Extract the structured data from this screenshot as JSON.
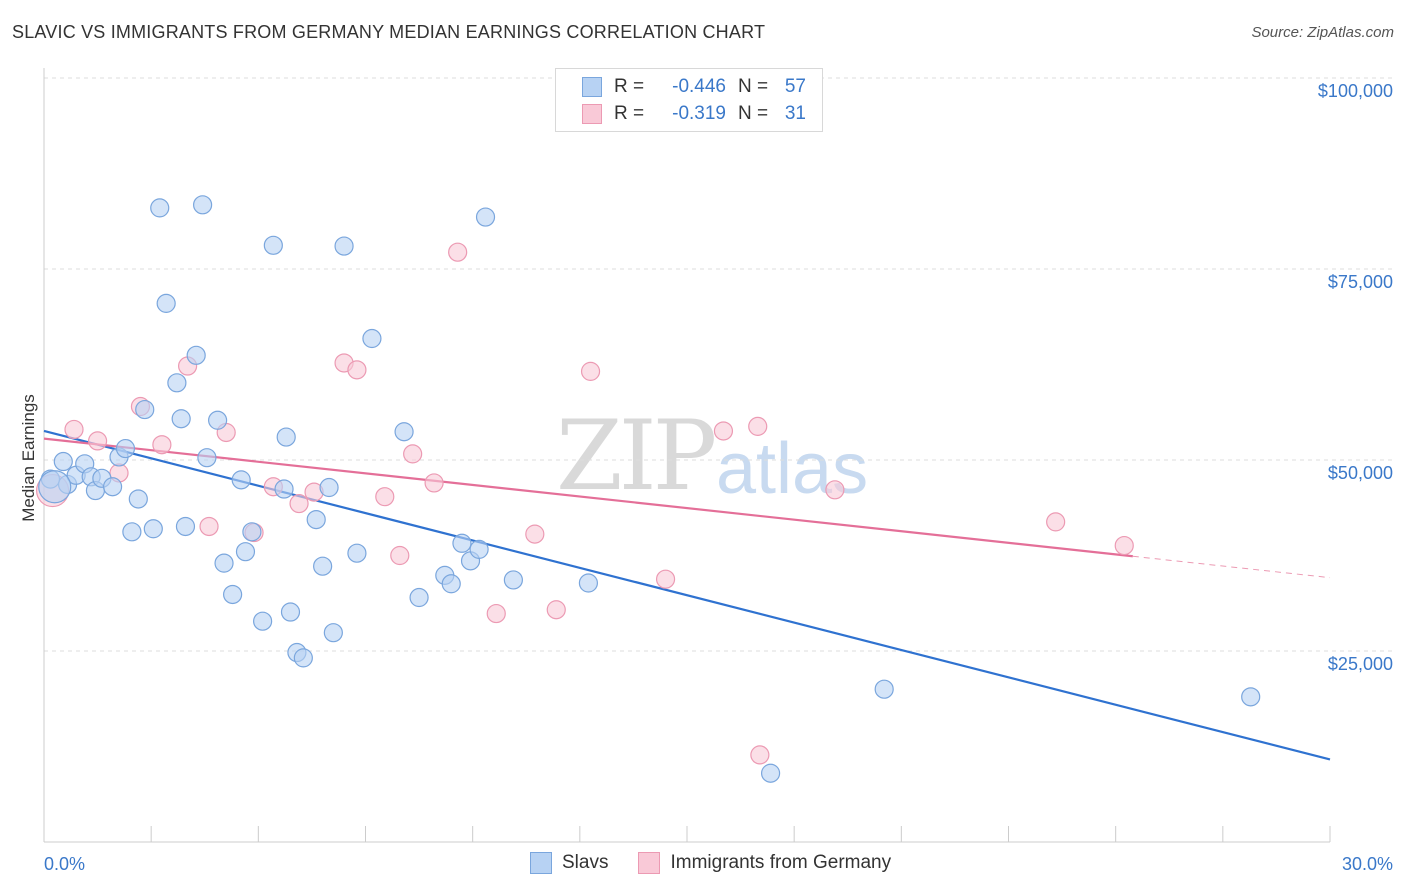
{
  "header": {
    "title": "SLAVIC VS IMMIGRANTS FROM GERMANY MEDIAN EARNINGS CORRELATION CHART",
    "source": "Source: ZipAtlas.com"
  },
  "watermark": {
    "zip": "ZIP",
    "atlas": "atlas"
  },
  "legend_top": {
    "rows": [
      {
        "r_label": "R =",
        "r_value": "-0.446",
        "n_label": "N =",
        "n_value": "57"
      },
      {
        "r_label": "R =",
        "r_value": "-0.319",
        "n_label": "N =",
        "n_value": "31"
      }
    ]
  },
  "legend_bottom": {
    "items": [
      "Slavs",
      "Immigrants from Germany"
    ]
  },
  "colors": {
    "slavs_fill": "#b7d2f3",
    "slavs_stroke": "#7aa6dd",
    "slavs_line": "#2f72d0",
    "germany_fill": "#f9c9d7",
    "germany_stroke": "#ec9ab3",
    "germany_line": "#e46f98",
    "tick_text": "#3a78c9",
    "grid": "#dddddd"
  },
  "chart_data": {
    "type": "scatter",
    "title": "SLAVIC VS IMMIGRANTS FROM GERMANY MEDIAN EARNINGS CORRELATION CHART",
    "xlabel": "",
    "ylabel": "Median Earnings",
    "xlim": [
      0,
      30
    ],
    "ylim": [
      0,
      105000
    ],
    "x_tick_labels": [
      "0.0%",
      "30.0%"
    ],
    "y_ticks": [
      25000,
      50000,
      75000,
      100000
    ],
    "y_tick_labels": [
      "$25,000",
      "$50,000",
      "$75,000",
      "$100,000"
    ],
    "grid": true,
    "legend_position": "top-center",
    "series": [
      {
        "name": "Slavs",
        "r": -0.446,
        "n": 57,
        "trend": {
          "x": [
            0,
            30
          ],
          "y": [
            53800,
            10800
          ]
        },
        "points": [
          [
            0.15,
            47500
          ],
          [
            0.45,
            49800
          ],
          [
            0.55,
            46800
          ],
          [
            0.75,
            48000
          ],
          [
            0.95,
            49500
          ],
          [
            1.1,
            47800
          ],
          [
            1.2,
            46000
          ],
          [
            1.35,
            47600
          ],
          [
            1.6,
            46500
          ],
          [
            1.75,
            50400
          ],
          [
            1.9,
            51500
          ],
          [
            2.05,
            40600
          ],
          [
            2.2,
            44900
          ],
          [
            2.35,
            56600
          ],
          [
            2.55,
            41000
          ],
          [
            2.7,
            83000
          ],
          [
            2.85,
            70500
          ],
          [
            3.1,
            60100
          ],
          [
            3.2,
            55400
          ],
          [
            3.3,
            41300
          ],
          [
            3.55,
            63700
          ],
          [
            3.7,
            83400
          ],
          [
            3.8,
            50300
          ],
          [
            4.05,
            55200
          ],
          [
            4.2,
            36500
          ],
          [
            4.4,
            32400
          ],
          [
            4.6,
            47400
          ],
          [
            4.7,
            38000
          ],
          [
            4.85,
            40600
          ],
          [
            5.1,
            28900
          ],
          [
            5.35,
            78100
          ],
          [
            5.6,
            46200
          ],
          [
            5.65,
            53000
          ],
          [
            5.75,
            30100
          ],
          [
            5.9,
            24800
          ],
          [
            6.05,
            24100
          ],
          [
            6.35,
            42200
          ],
          [
            6.5,
            36100
          ],
          [
            6.65,
            46400
          ],
          [
            6.75,
            27400
          ],
          [
            7.0,
            78000
          ],
          [
            7.3,
            37800
          ],
          [
            7.65,
            65900
          ],
          [
            8.4,
            53700
          ],
          [
            8.75,
            32000
          ],
          [
            9.35,
            34900
          ],
          [
            9.5,
            33800
          ],
          [
            9.75,
            39100
          ],
          [
            9.95,
            36800
          ],
          [
            10.15,
            38300
          ],
          [
            10.3,
            81800
          ],
          [
            10.95,
            34300
          ],
          [
            12.7,
            33900
          ],
          [
            16.95,
            9000
          ],
          [
            19.6,
            20000
          ],
          [
            28.15,
            19000
          ],
          [
            0.25,
            46500
          ]
        ]
      },
      {
        "name": "Immigrants from Germany",
        "r": -0.319,
        "n": 31,
        "trend": {
          "x": [
            0,
            25.4
          ],
          "y": [
            52800,
            37400
          ]
        },
        "trend_dashed": {
          "x": [
            25.4,
            30
          ],
          "y": [
            37400,
            34600
          ]
        },
        "points": [
          [
            0.2,
            46000
          ],
          [
            0.7,
            54000
          ],
          [
            1.25,
            52500
          ],
          [
            1.75,
            48300
          ],
          [
            2.25,
            57000
          ],
          [
            2.75,
            52000
          ],
          [
            3.35,
            62300
          ],
          [
            3.85,
            41300
          ],
          [
            4.25,
            53600
          ],
          [
            4.9,
            40500
          ],
          [
            5.35,
            46500
          ],
          [
            5.95,
            44300
          ],
          [
            6.3,
            45800
          ],
          [
            7.0,
            62700
          ],
          [
            7.3,
            61800
          ],
          [
            7.95,
            45200
          ],
          [
            8.3,
            37500
          ],
          [
            8.6,
            50800
          ],
          [
            9.1,
            47000
          ],
          [
            9.65,
            77200
          ],
          [
            10.55,
            29900
          ],
          [
            11.45,
            40300
          ],
          [
            11.95,
            30400
          ],
          [
            12.75,
            61600
          ],
          [
            14.5,
            34400
          ],
          [
            15.85,
            53800
          ],
          [
            16.65,
            54400
          ],
          [
            16.7,
            11400
          ],
          [
            18.45,
            46100
          ],
          [
            23.6,
            41900
          ],
          [
            25.2,
            38800
          ]
        ]
      }
    ]
  }
}
